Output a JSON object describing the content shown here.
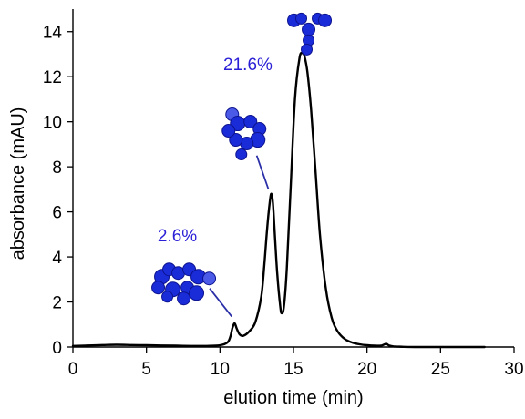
{
  "chart_data": {
    "type": "line",
    "xlabel": "elution time (min)",
    "ylabel": "absorbance (mAU)",
    "xlim": [
      0,
      30
    ],
    "ylim": [
      0,
      15
    ],
    "x_ticks": [
      0,
      5,
      10,
      15,
      20,
      25,
      30
    ],
    "y_ticks": [
      0,
      2,
      4,
      6,
      8,
      10,
      12,
      14
    ],
    "grid": false,
    "series": [
      {
        "x": [
          0,
          1,
          2,
          3,
          4,
          5,
          6,
          7,
          8,
          9,
          10,
          10.5,
          10.7,
          10.85,
          11.0,
          11.15,
          11.35,
          11.6,
          12.0,
          12.4,
          12.8,
          13.0,
          13.2,
          13.4,
          13.5,
          13.6,
          13.75,
          13.9,
          14.1,
          14.2,
          14.35,
          14.55,
          14.8,
          15.1,
          15.4,
          15.6,
          15.75,
          15.95,
          16.2,
          16.5,
          16.8,
          17.2,
          17.6,
          18.0,
          18.5,
          19.0,
          19.5,
          20.0,
          20.5,
          21.0,
          21.3,
          21.5,
          21.8,
          22.5,
          23.5,
          25,
          27,
          28
        ],
        "y": [
          0.05,
          0.07,
          0.09,
          0.1,
          0.09,
          0.08,
          0.07,
          0.06,
          0.05,
          0.05,
          0.08,
          0.2,
          0.45,
          0.85,
          1.05,
          0.8,
          0.55,
          0.5,
          0.7,
          1.1,
          2.2,
          3.5,
          5.2,
          6.5,
          6.8,
          6.4,
          4.8,
          3.2,
          1.8,
          1.5,
          1.8,
          3.5,
          7.0,
          11.0,
          12.8,
          13.05,
          12.9,
          12.2,
          10.5,
          7.8,
          5.0,
          2.6,
          1.3,
          0.7,
          0.35,
          0.2,
          0.12,
          0.08,
          0.06,
          0.07,
          0.14,
          0.07,
          0.03,
          0.01,
          0.0,
          0.0,
          0.0,
          0.0
        ]
      }
    ],
    "annotations": [
      {
        "text": "2.6%",
        "color": "#2a1fd6",
        "x": 7.1,
        "y": 4.7,
        "target_x": 10.9,
        "target_y": 1.0,
        "image": "antibody-trimer-structure"
      },
      {
        "text": "21.6%",
        "color": "#2a1fd6",
        "x": 11.9,
        "y": 12.3,
        "target_x": 13.3,
        "target_y": 7.0,
        "image": "antibody-dimer-structure"
      },
      {
        "image": "antibody-monomer-structure",
        "x": 15.9,
        "y": 14.5
      }
    ]
  }
}
